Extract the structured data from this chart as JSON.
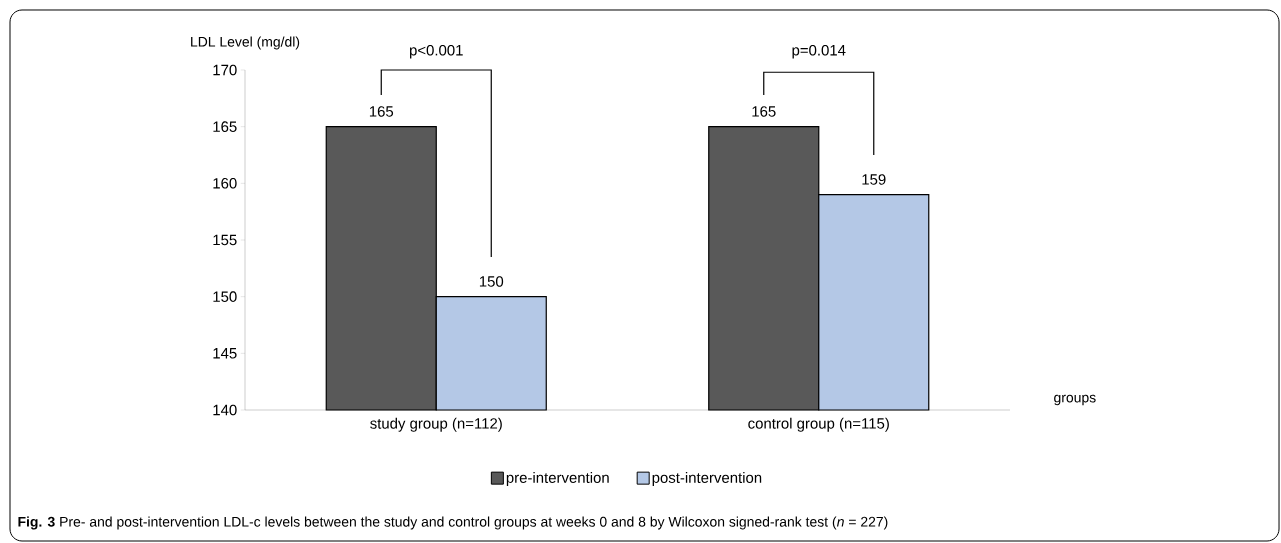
{
  "chart_data": {
    "type": "bar",
    "ylabel": "LDL Level (mg/dl)",
    "xlabel": "groups",
    "categories": [
      "study group (n=112)",
      "control group (n=115)"
    ],
    "series": [
      {
        "name": "pre-intervention",
        "color": "#595959",
        "values": [
          165,
          165
        ]
      },
      {
        "name": "post-intervention",
        "color": "#b4c8e6",
        "values": [
          150,
          159
        ]
      }
    ],
    "ylim": [
      140,
      170
    ],
    "yticks": [
      140,
      145,
      150,
      155,
      160,
      165,
      170
    ],
    "data_labels": true,
    "legend": "bottom",
    "grid": false,
    "annotations": [
      "p<0.001",
      "p=0.014",
      "**Fig. 3** Pre- and post-intervention LDL-c levels between the study and control groups at weeks 0 and 8 by Wilcoxon signed-rank test (*n* = 227)"
    ]
  }
}
